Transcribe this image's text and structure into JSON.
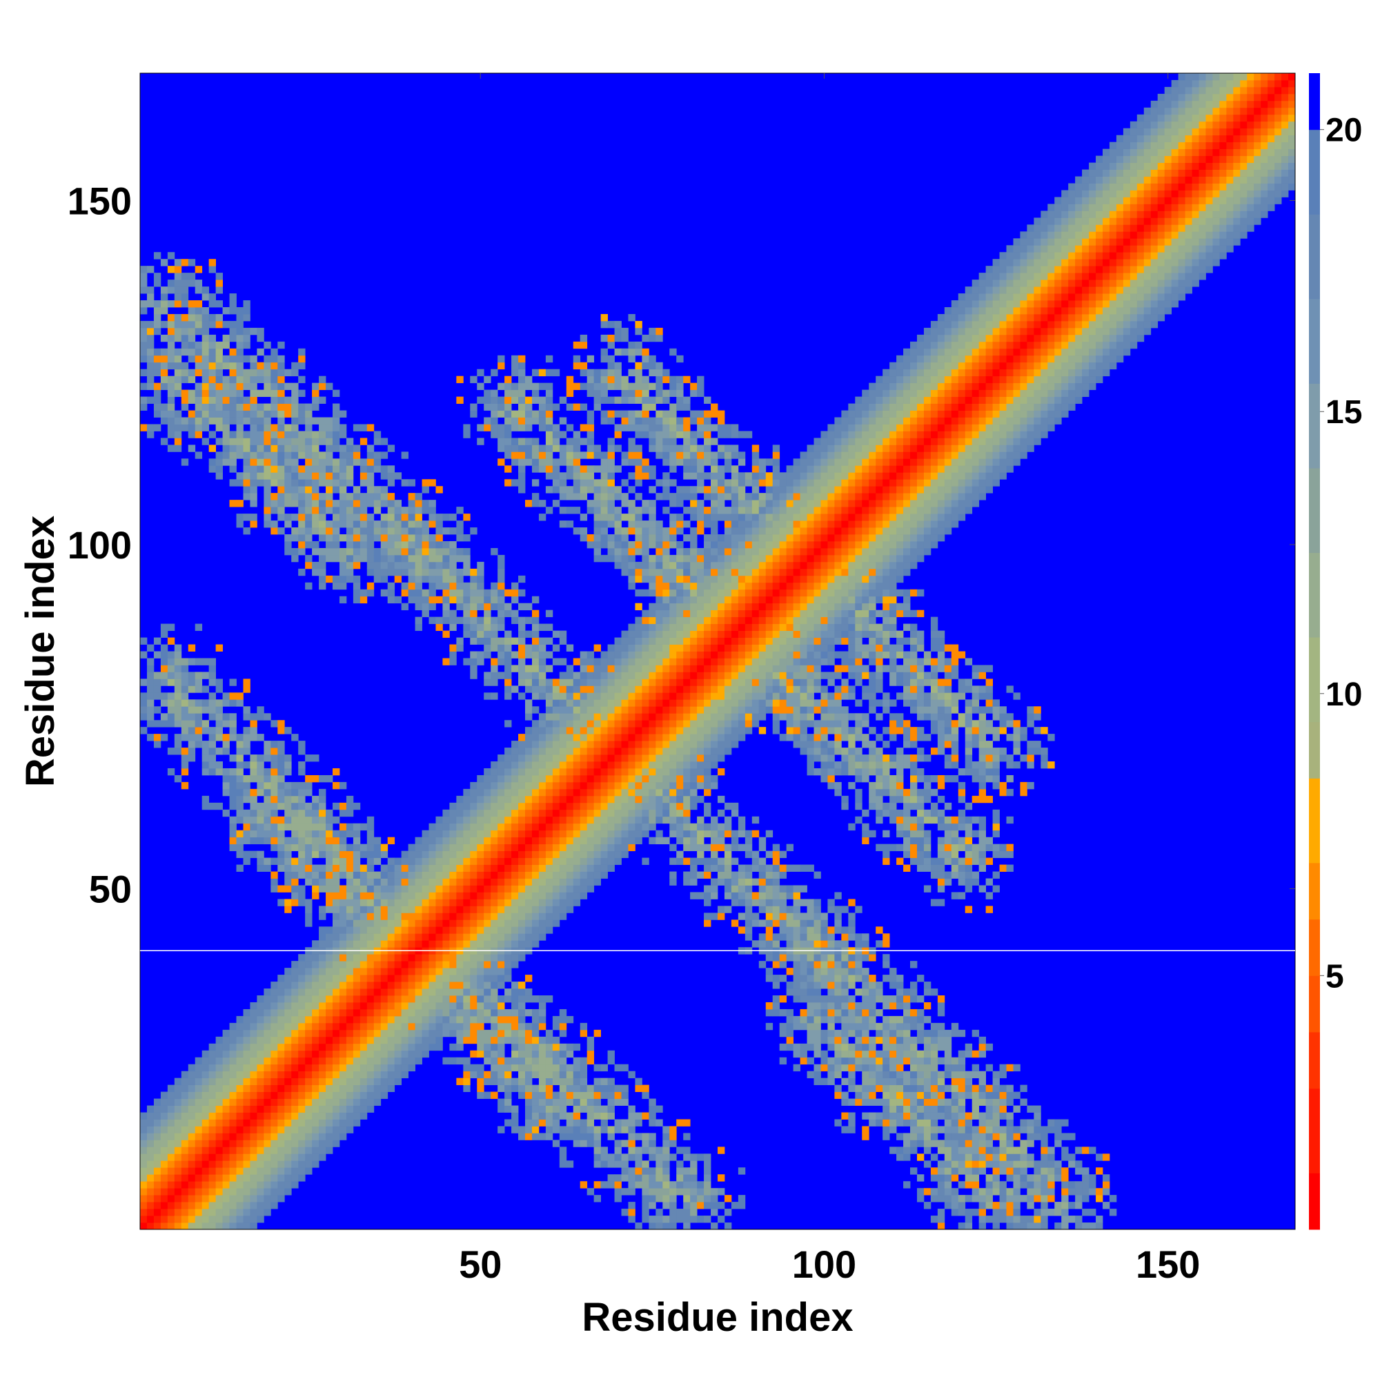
{
  "chart_data": {
    "type": "heatmap",
    "title": "",
    "xlabel": "Residue index",
    "ylabel": "Residue index",
    "xlim": [
      1,
      168
    ],
    "ylim": [
      1,
      168
    ],
    "x_ticks": [
      50,
      100,
      150
    ],
    "y_ticks": [
      50,
      100,
      150
    ],
    "colorbar": {
      "ticks": [
        5,
        10,
        15,
        20
      ],
      "range": [
        0.5,
        21
      ],
      "bands": [
        {
          "max": 1.5,
          "color": "#ff0000"
        },
        {
          "max": 3,
          "color": "#ff1a00"
        },
        {
          "max": 4,
          "color": "#ff3300"
        },
        {
          "max": 5,
          "color": "#ff5500"
        },
        {
          "max": 6,
          "color": "#ff6a00"
        },
        {
          "max": 7,
          "color": "#ff8a00"
        },
        {
          "max": 8.5,
          "color": "#ffaa00"
        },
        {
          "max": 9.5,
          "color": "#a8b27c"
        },
        {
          "max": 11,
          "color": "#a3b581"
        },
        {
          "max": 12.5,
          "color": "#97ad8f"
        },
        {
          "max": 14,
          "color": "#8aa39a"
        },
        {
          "max": 15.5,
          "color": "#7f9cab"
        },
        {
          "max": 17,
          "color": "#6f91b4"
        },
        {
          "max": 18.5,
          "color": "#6587b3"
        },
        {
          "max": 20,
          "color": "#5a80b8"
        },
        {
          "max": 21,
          "color": "#0000ff"
        }
      ]
    },
    "colors": {
      "background_over_cutoff": "#0000ff",
      "diagonal": "#ff0000"
    },
    "matrix_description": "Symmetric residue-residue distance map (values in colorbar units, cutoff 20); diagonal band of close contacts plus two anti-diagonal contact arms crossing near residues 45 and 100, and off-diagonal contact patches",
    "contact_features": [
      {
        "center": [
          45,
          45
        ],
        "kind": "diagonal"
      },
      {
        "center": [
          100,
          100
        ],
        "kind": "diagonal"
      },
      {
        "from": [
          5,
          80
        ],
        "to": [
          60,
          20
        ],
        "kind": "anti-diagonal-arm"
      },
      {
        "from": [
          55,
          120
        ],
        "to": [
          95,
          80
        ],
        "kind": "anti-diagonal-arm"
      },
      {
        "from": [
          100,
          95
        ],
        "to": [
          125,
          70
        ],
        "kind": "anti-diagonal-arm"
      },
      {
        "from": [
          100,
          30
        ],
        "to": [
          125,
          5
        ],
        "kind": "anti-diagonal-arm"
      },
      {
        "from": [
          5,
          135
        ],
        "to": [
          40,
          100
        ],
        "kind": "anti-diagonal-arm"
      },
      {
        "from": [
          70,
          70
        ],
        "to": [
          100,
          40
        ],
        "kind": "anti-diagonal-arm"
      }
    ],
    "grid": false,
    "legend": "colorbar-right"
  }
}
